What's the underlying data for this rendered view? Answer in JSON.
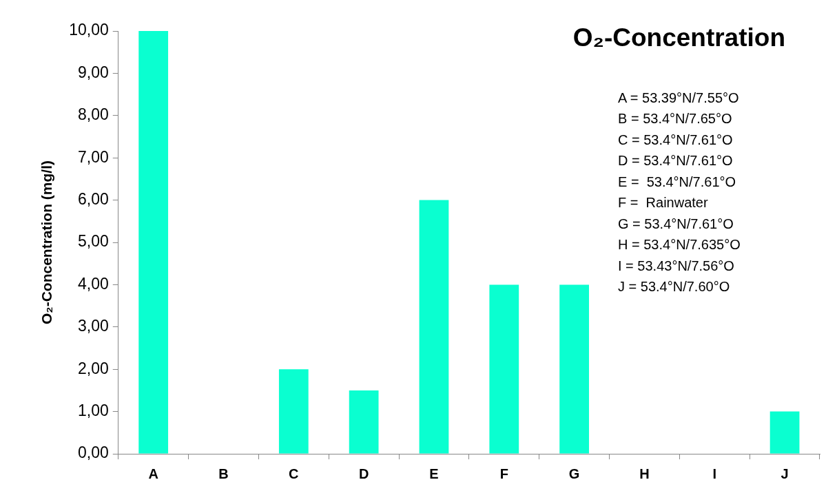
{
  "chart_data": {
    "type": "bar",
    "title": "O₂-Concentration",
    "ylabel": "O₂-Concentration (mg/l)",
    "categories": [
      "A",
      "B",
      "C",
      "D",
      "E",
      "F",
      "G",
      "H",
      "I",
      "J"
    ],
    "values": [
      10,
      0,
      2,
      1.5,
      6,
      4,
      4,
      0,
      0,
      1
    ],
    "color": "#0affd0",
    "ylim": [
      0,
      10
    ],
    "yticks": [
      {
        "value": 0,
        "label": "0,00"
      },
      {
        "value": 1,
        "label": "1,00"
      },
      {
        "value": 2,
        "label": "2,00"
      },
      {
        "value": 3,
        "label": "3,00"
      },
      {
        "value": 4,
        "label": "4,00"
      },
      {
        "value": 5,
        "label": "5,00"
      },
      {
        "value": 6,
        "label": "6,00"
      },
      {
        "value": 7,
        "label": "7,00"
      },
      {
        "value": 8,
        "label": "8,00"
      },
      {
        "value": 9,
        "label": "9,00"
      },
      {
        "value": 10,
        "label": "10,00"
      }
    ],
    "grid": false,
    "legend": false,
    "annotations": [
      "A = 53.39°N/7.55°O",
      "B = 53.4°N/7.65°O",
      "C = 53.4°N/7.61°O",
      "D = 53.4°N/7.61°O",
      "E =  53.4°N/7.61°O",
      "F =  Rainwater",
      "G = 53.4°N/7.61°O",
      "H = 53.4°N/7.635°O",
      "I = 53.43°N/7.56°O",
      "J = 53.4°N/7.60°O"
    ]
  }
}
